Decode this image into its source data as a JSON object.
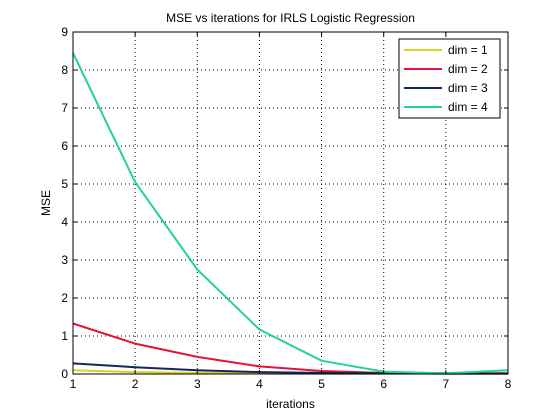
{
  "chart_data": {
    "type": "line",
    "title": "MSE vs iterations for IRLS Logistic Regression",
    "xlabel": "iterations",
    "ylabel": "MSE",
    "xlim": [
      1,
      8
    ],
    "ylim": [
      0,
      9
    ],
    "xticks": [
      1,
      2,
      3,
      4,
      5,
      6,
      7,
      8
    ],
    "yticks": [
      0,
      1,
      2,
      3,
      4,
      5,
      6,
      7,
      8,
      9
    ],
    "grid": true,
    "grid_style": "dotted",
    "legend_position": "top-right",
    "x": [
      1,
      2,
      3,
      4,
      5,
      6,
      7,
      8
    ],
    "series": [
      {
        "name": "dim = 1",
        "color": "#d4d422",
        "values": [
          0.1,
          0.05,
          0.03,
          0.02,
          0.01,
          0.01,
          0.01,
          0.01
        ]
      },
      {
        "name": "dim = 2",
        "color": "#e0143c",
        "values": [
          1.33,
          0.8,
          0.45,
          0.2,
          0.08,
          0.03,
          0.02,
          0.02
        ]
      },
      {
        "name": "dim = 3",
        "color": "#14285a",
        "values": [
          0.28,
          0.18,
          0.1,
          0.05,
          0.03,
          0.02,
          0.01,
          0.01
        ]
      },
      {
        "name": "dim = 4",
        "color": "#22d490",
        "values": [
          8.45,
          5.05,
          2.75,
          1.17,
          0.35,
          0.06,
          0.02,
          0.1
        ]
      }
    ]
  }
}
